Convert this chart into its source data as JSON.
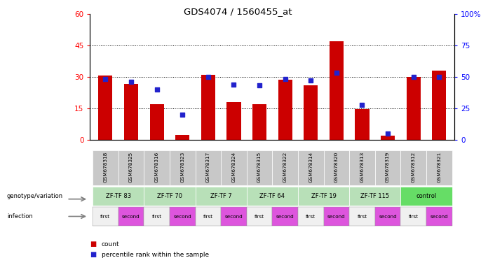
{
  "title": "GDS4074 / 1560455_at",
  "samples": [
    "GSM678318",
    "GSM678325",
    "GSM678316",
    "GSM678323",
    "GSM678317",
    "GSM678324",
    "GSM678315",
    "GSM678322",
    "GSM678314",
    "GSM678320",
    "GSM678313",
    "GSM678319",
    "GSM678312",
    "GSM678321"
  ],
  "count_values": [
    30.5,
    26.5,
    17.0,
    2.5,
    31.0,
    18.0,
    17.0,
    28.5,
    26.0,
    47.0,
    14.5,
    2.0,
    30.0,
    33.0
  ],
  "percentile_values": [
    48,
    46,
    40,
    20,
    50,
    44,
    43,
    48,
    47,
    53,
    28,
    5,
    50,
    50
  ],
  "ylim_left": [
    0,
    60
  ],
  "ylim_right": [
    0,
    100
  ],
  "yticks_left": [
    0,
    15,
    30,
    45,
    60
  ],
  "yticks_right": [
    0,
    25,
    50,
    75,
    100
  ],
  "bar_color": "#cc0000",
  "dot_color": "#2222cc",
  "genotype_groups": [
    {
      "label": "ZF-TF 83",
      "span": [
        0,
        2
      ],
      "color": "#b8e0b8"
    },
    {
      "label": "ZF-TF 70",
      "span": [
        2,
        4
      ],
      "color": "#b8e0b8"
    },
    {
      "label": "ZF-TF 7",
      "span": [
        4,
        6
      ],
      "color": "#b8e0b8"
    },
    {
      "label": "ZF-TF 64",
      "span": [
        6,
        8
      ],
      "color": "#b8e0b8"
    },
    {
      "label": "ZF-TF 19",
      "span": [
        8,
        10
      ],
      "color": "#b8e0b8"
    },
    {
      "label": "ZF-TF 115",
      "span": [
        10,
        12
      ],
      "color": "#b8e0b8"
    },
    {
      "label": "control",
      "span": [
        12,
        14
      ],
      "color": "#66dd66"
    }
  ],
  "infection_labels": [
    "first",
    "second",
    "first",
    "second",
    "first",
    "second",
    "first",
    "second",
    "first",
    "second",
    "first",
    "second",
    "first",
    "second"
  ],
  "infection_first_color": "#f0f0f0",
  "infection_second_color": "#dd55dd",
  "sample_bg_color": "#c8c8c8",
  "legend_count_label": "count",
  "legend_pct_label": "percentile rank within the sample"
}
